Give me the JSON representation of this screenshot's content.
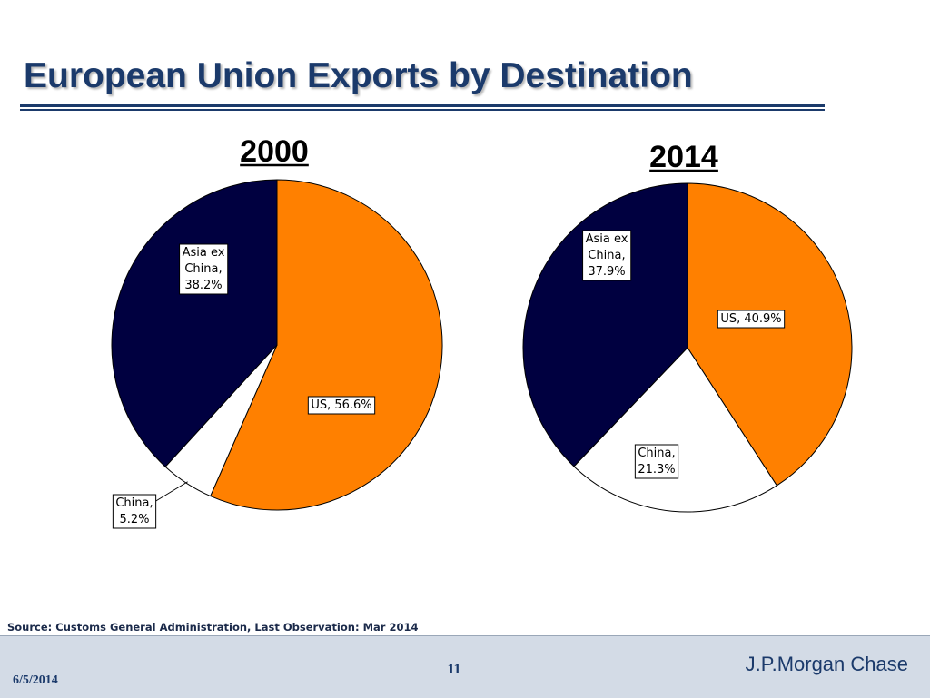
{
  "page": {
    "title": "European Union Exports by Destination",
    "source": "Source: Customs General Administration, Last Observation: Mar 2014",
    "footer": {
      "date": "6/5/2014",
      "page_number": "11",
      "brand": "J.P.Morgan Chase"
    }
  },
  "colors": {
    "title": "#1b3a6b",
    "us": "#ff8000",
    "china": "#ffffff",
    "asia_ex_china": "#000040",
    "footer_bg": "#d3dbe6"
  },
  "chart_data": [
    {
      "type": "pie",
      "title": "2000",
      "slices": [
        {
          "label": "US",
          "value": 56.6,
          "label_lines": [
            "US, 56.6%"
          ]
        },
        {
          "label": "China",
          "value": 5.2,
          "label_lines": [
            "China,",
            "5.2%"
          ]
        },
        {
          "label": "Asia ex China",
          "value": 38.2,
          "label_lines": [
            "Asia ex",
            "China,",
            "38.2%"
          ]
        }
      ]
    },
    {
      "type": "pie",
      "title": "2014",
      "slices": [
        {
          "label": "US",
          "value": 40.9,
          "label_lines": [
            "US, 40.9%"
          ]
        },
        {
          "label": "China",
          "value": 21.3,
          "label_lines": [
            "China,",
            "21.3%"
          ]
        },
        {
          "label": "Asia ex China",
          "value": 37.9,
          "label_lines": [
            "Asia ex",
            "China,",
            "37.9%"
          ]
        }
      ]
    }
  ]
}
